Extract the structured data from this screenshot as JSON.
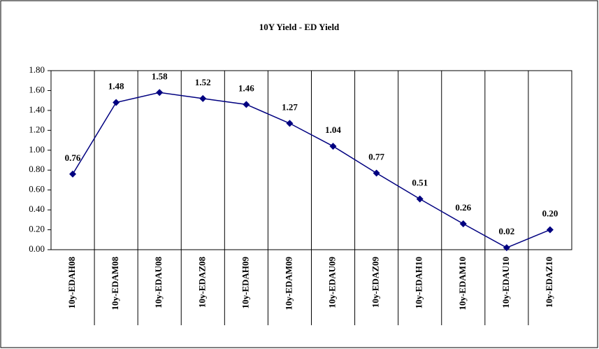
{
  "chart_data": {
    "type": "line",
    "title": "10Y Yield - ED Yield",
    "categories": [
      "10y-EDAH08",
      "10y-EDAM08",
      "10y-EDAU08",
      "10y-EDAZ08",
      "10y-EDAH09",
      "10y-EDAM09",
      "10y-EDAU09",
      "10y-EDAZ09",
      "10y-EDAH10",
      "10y-EDAM10",
      "10y-EDAU10",
      "10y-EDAZ10"
    ],
    "values": [
      0.76,
      1.48,
      1.58,
      1.52,
      1.46,
      1.27,
      1.04,
      0.77,
      0.51,
      0.26,
      0.02,
      0.2
    ],
    "value_labels": [
      "0.76",
      "1.48",
      "1.58",
      "1.52",
      "1.46",
      "1.27",
      "1.04",
      "0.77",
      "0.51",
      "0.26",
      "0.02",
      "0.20"
    ],
    "color": "#000080",
    "ylim": [
      0,
      1.8
    ],
    "yticks": [
      {
        "value": 0,
        "label": "0.00"
      },
      {
        "value": 0.2,
        "label": "0.20"
      },
      {
        "value": 0.4,
        "label": "0.40"
      },
      {
        "value": 0.6,
        "label": "0.60"
      },
      {
        "value": 0.8,
        "label": "0.80"
      },
      {
        "value": 1,
        "label": "1.00"
      },
      {
        "value": 1.2,
        "label": "1.20"
      },
      {
        "value": 1.4,
        "label": "1.40"
      },
      {
        "value": 1.6,
        "label": "1.60"
      },
      {
        "value": 1.8,
        "label": "1.80"
      }
    ],
    "grid": true
  }
}
